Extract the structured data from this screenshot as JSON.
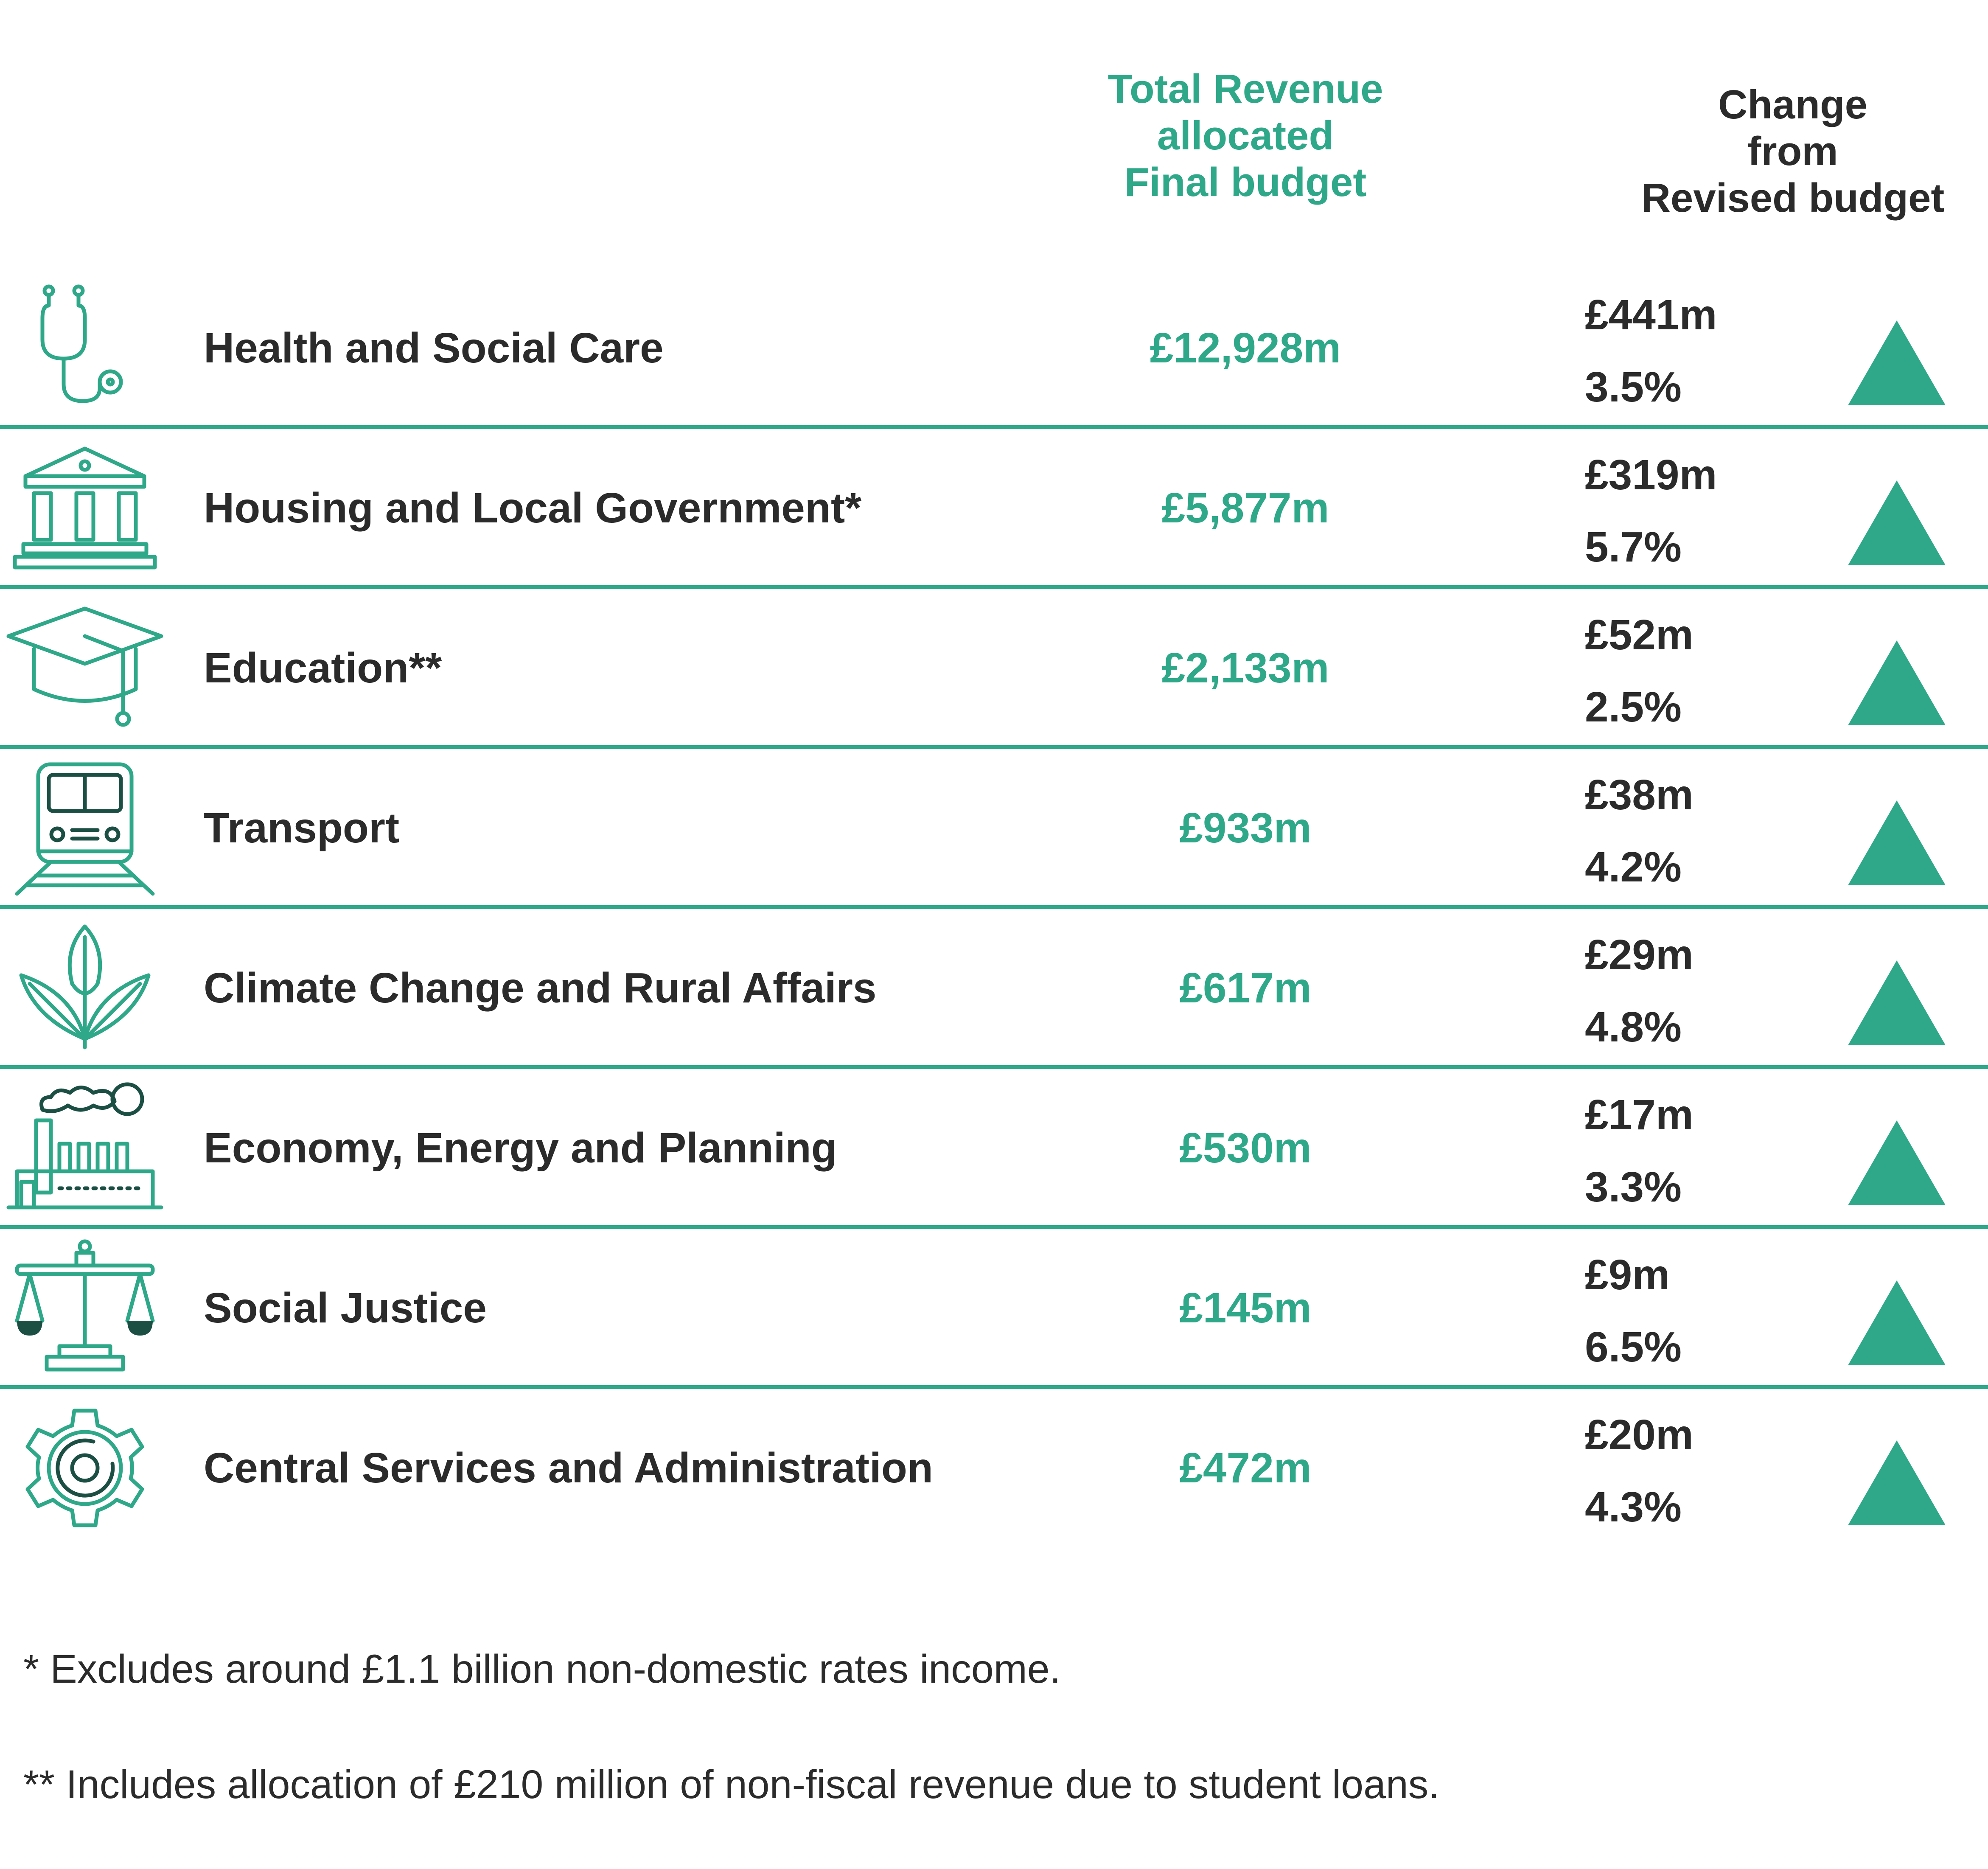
{
  "headers": {
    "revenue": [
      "Total Revenue",
      "allocated",
      "Final budget"
    ],
    "change": [
      "Change",
      "from",
      "Revised budget"
    ]
  },
  "chart_data": {
    "type": "table",
    "columns": [
      "Total Revenue allocated Final budget",
      "Change from Revised budget"
    ],
    "rows": [
      {
        "name": "Health and Social Care",
        "icon": "stethoscope-icon",
        "revenue": "£12,928m",
        "change": "£441m",
        "percent": "3.5%",
        "revenue_m": 12928,
        "change_m": 441,
        "direction": "up"
      },
      {
        "name": "Housing and Local Government*",
        "icon": "government-building-icon",
        "revenue": "£5,877m",
        "change": "£319m",
        "percent": "5.7%",
        "revenue_m": 5877,
        "change_m": 319,
        "direction": "up"
      },
      {
        "name": "Education**",
        "icon": "graduation-cap-icon",
        "revenue": "£2,133m",
        "change": "£52m",
        "percent": "2.5%",
        "revenue_m": 2133,
        "change_m": 52,
        "direction": "up"
      },
      {
        "name": "Transport",
        "icon": "train-icon",
        "revenue": "£933m",
        "change": "£38m",
        "percent": "4.2%",
        "revenue_m": 933,
        "change_m": 38,
        "direction": "up"
      },
      {
        "name": "Climate Change and Rural Affairs",
        "icon": "plant-icon",
        "revenue": "£617m",
        "change": "£29m",
        "percent": "4.8%",
        "revenue_m": 617,
        "change_m": 29,
        "direction": "up"
      },
      {
        "name": "Economy, Energy and Planning",
        "icon": "factory-icon",
        "revenue": "£530m",
        "change": "£17m",
        "percent": "3.3%",
        "revenue_m": 530,
        "change_m": 17,
        "direction": "up"
      },
      {
        "name": "Social Justice",
        "icon": "scales-icon",
        "revenue": "£145m",
        "change": "£9m",
        "percent": "6.5%",
        "revenue_m": 145,
        "change_m": 9,
        "direction": "up"
      },
      {
        "name": "Central Services and Administration",
        "icon": "gear-icon",
        "revenue": "£472m",
        "change": "£20m",
        "percent": "4.3%",
        "revenue_m": 472,
        "change_m": 20,
        "direction": "up"
      }
    ]
  },
  "colors": {
    "accent": "#2ea889",
    "text": "#2b2b2b",
    "dark_accent": "#1c4f44"
  },
  "notes": [
    "* Excludes around £1.1 billion non-domestic rates income.",
    "** Includes allocation of £210 million of non-fiscal revenue due to student loans."
  ]
}
